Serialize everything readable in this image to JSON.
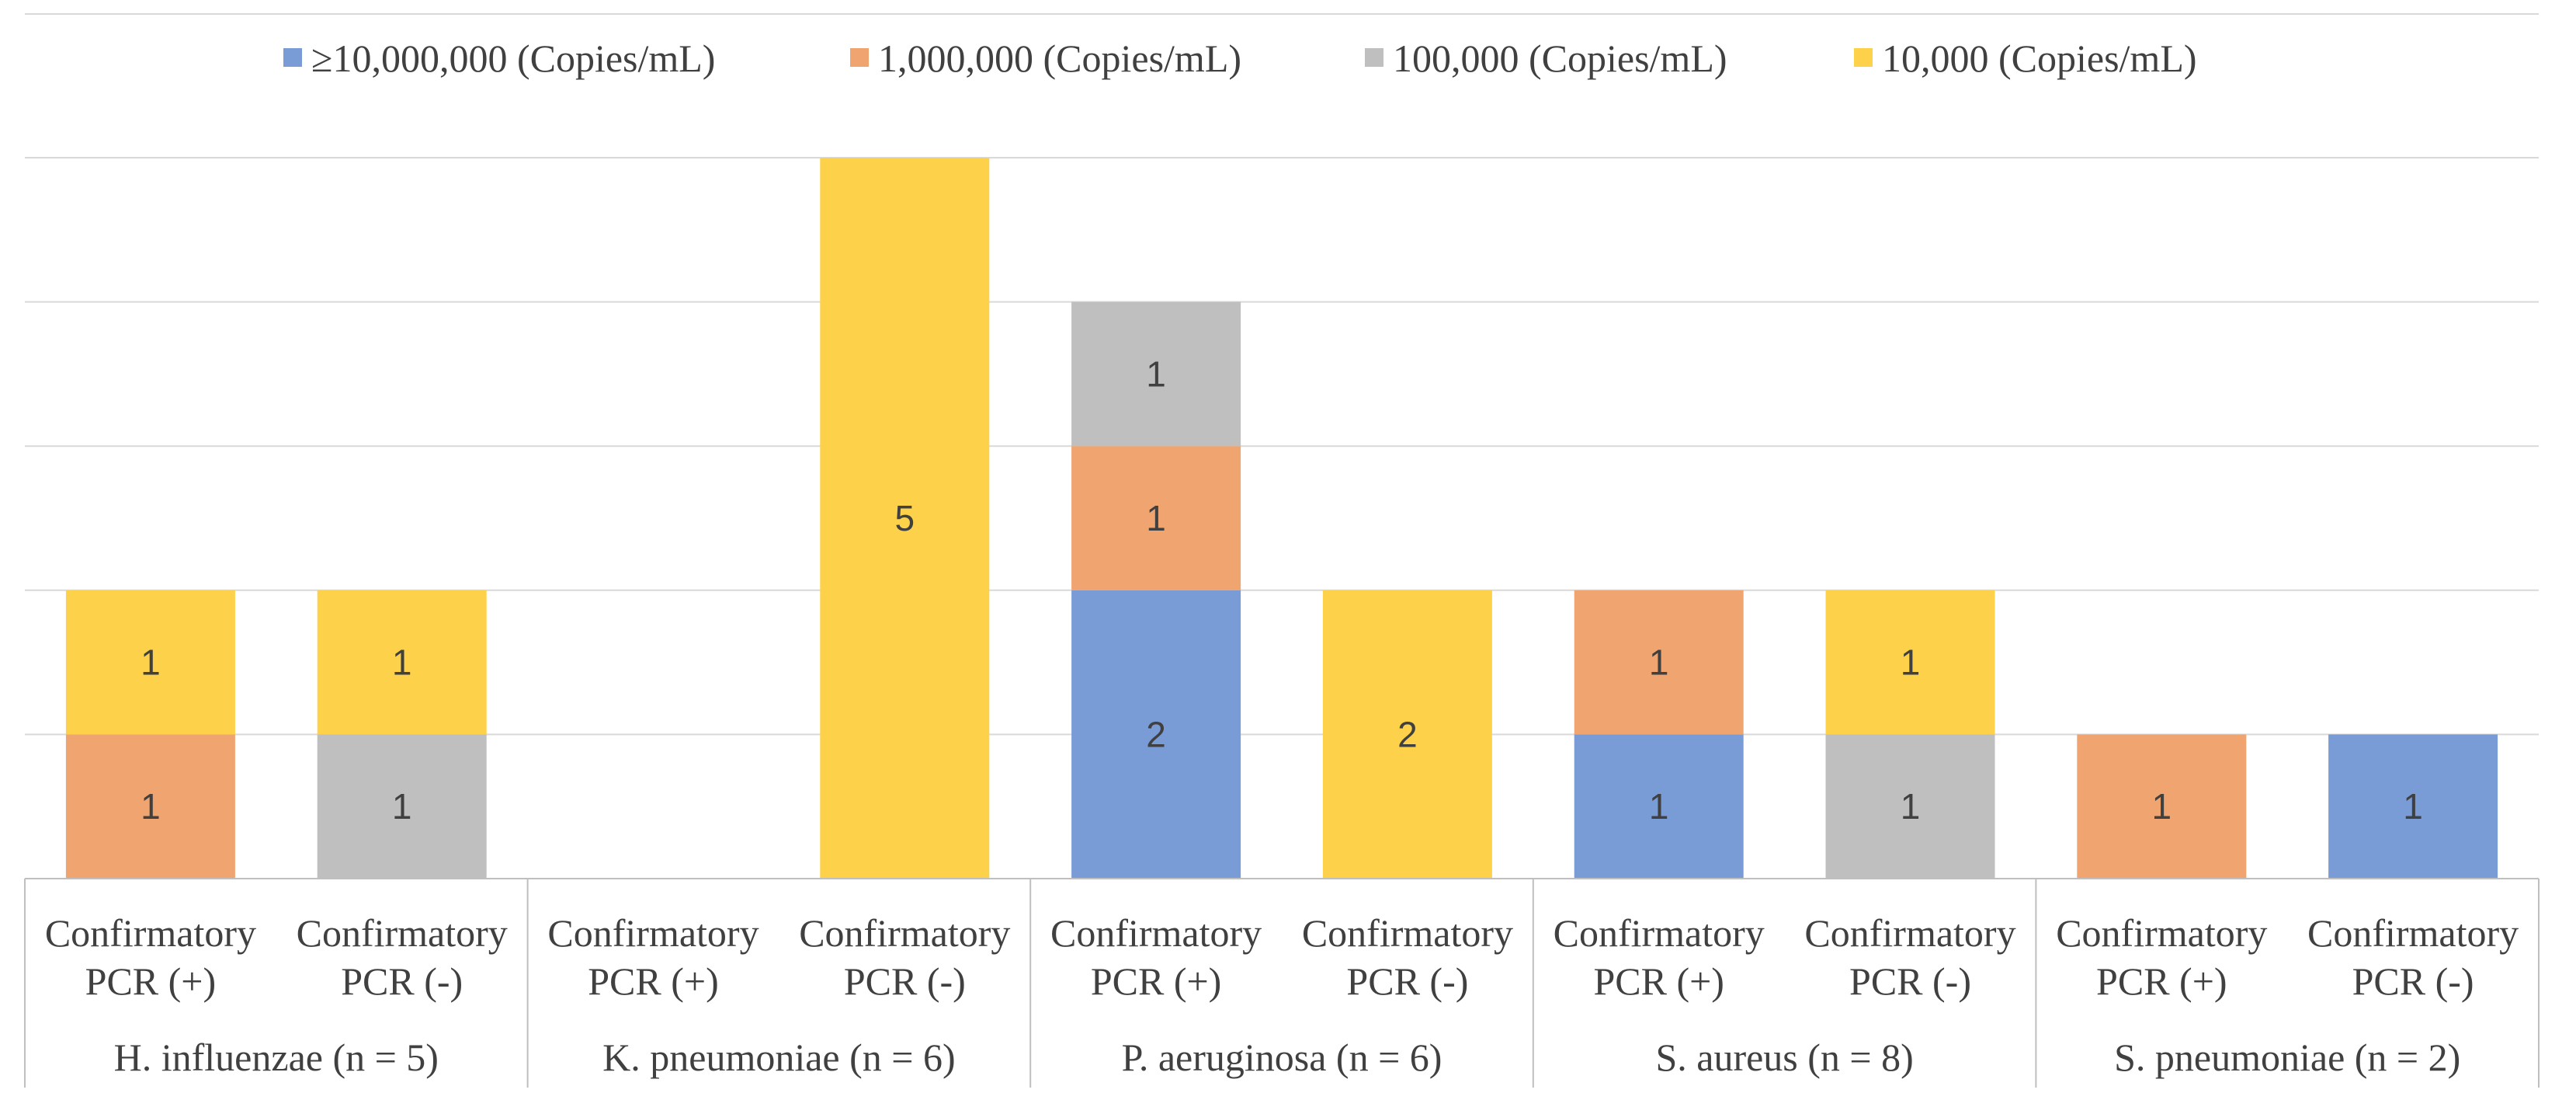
{
  "chart_data": {
    "type": "bar",
    "stacked": true,
    "title": "",
    "xlabel": "",
    "ylabel": "",
    "ylim": [
      0,
      5
    ],
    "grid": true,
    "legend_position": "top",
    "categories": [
      "Confirmatory PCR (+)",
      "Confirmatory PCR (-)",
      "Confirmatory PCR (+)",
      "Confirmatory PCR (-)",
      "Confirmatory PCR (+)",
      "Confirmatory PCR (-)",
      "Confirmatory PCR (+)",
      "Confirmatory PCR (-)",
      "Confirmatory PCR (+)",
      "Confirmatory PCR (-)"
    ],
    "category_lines": [
      [
        "Confirmatory",
        "PCR (+)"
      ],
      [
        "Confirmatory",
        "PCR (-)"
      ],
      [
        "Confirmatory",
        "PCR (+)"
      ],
      [
        "Confirmatory",
        "PCR (-)"
      ],
      [
        "Confirmatory",
        "PCR (+)"
      ],
      [
        "Confirmatory",
        "PCR (-)"
      ],
      [
        "Confirmatory",
        "PCR (+)"
      ],
      [
        "Confirmatory",
        "PCR (-)"
      ],
      [
        "Confirmatory",
        "PCR (+)"
      ],
      [
        "Confirmatory",
        "PCR (-)"
      ]
    ],
    "groups": [
      "H. influenzae (n = 5)",
      "K. pneumoniae (n = 6)",
      "P. aeruginosa (n = 6)",
      "S. aureus (n = 8)",
      "S. pneumoniae (n = 2)"
    ],
    "series": [
      {
        "name": "≥10,000,000 (Copies/mL)",
        "color": "#7a9cd6",
        "values": [
          null,
          null,
          null,
          null,
          2,
          null,
          1,
          null,
          null,
          1
        ]
      },
      {
        "name": "1,000,000 (Copies/mL)",
        "color": "#f0a46f",
        "values": [
          1,
          null,
          null,
          null,
          1,
          null,
          1,
          null,
          1,
          null
        ]
      },
      {
        "name": "100,000 (Copies/mL)",
        "color": "#bfbfbf",
        "values": [
          null,
          1,
          null,
          null,
          1,
          null,
          null,
          1,
          null,
          null
        ]
      },
      {
        "name": "10,000 (Copies/mL)",
        "color": "#fdd14a",
        "values": [
          1,
          1,
          null,
          5,
          null,
          2,
          null,
          1,
          null,
          null
        ]
      }
    ]
  }
}
